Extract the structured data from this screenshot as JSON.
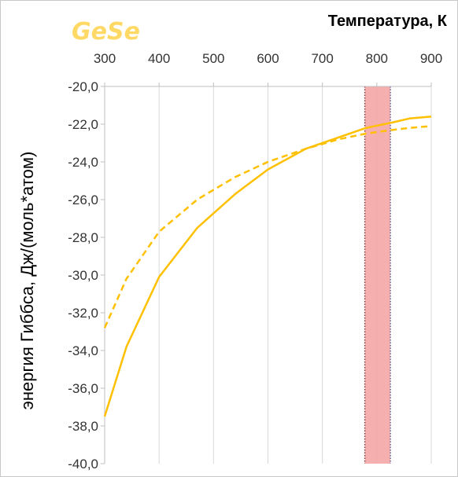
{
  "chart_data": {
    "type": "line",
    "annotation": "GeSe",
    "xlabel": "Температура, К",
    "ylabel": "энергия Гиббса, Дж/(моль*атом)",
    "xlim": [
      300,
      900
    ],
    "ylim": [
      -40,
      -20
    ],
    "x_ticks": [
      "300",
      "400",
      "500",
      "600",
      "700",
      "800",
      "900"
    ],
    "y_ticks": [
      "-20,0",
      "-22,0",
      "-24,0",
      "-26,0",
      "-28,0",
      "-30,0",
      "-32,0",
      "-34,0",
      "-36,0",
      "-38,0",
      "-40,0"
    ],
    "x_axis_position": "top",
    "grid": "vertical",
    "highlight_band": {
      "x_from": 778,
      "x_to": 825,
      "color": "#f4a6a6"
    },
    "series": [
      {
        "style": "solid",
        "color": "#ffc000",
        "x": [
          300,
          340,
          400,
          470,
          540,
          600,
          670,
          730,
          780,
          830,
          860,
          900
        ],
        "y": [
          -37.5,
          -33.8,
          -30.1,
          -27.5,
          -25.7,
          -24.4,
          -23.3,
          -22.7,
          -22.2,
          -21.9,
          -21.7,
          -21.6
        ]
      },
      {
        "style": "dashed",
        "color": "#ffc000",
        "x": [
          300,
          340,
          400,
          470,
          540,
          600,
          670,
          730,
          780,
          830,
          860,
          900
        ],
        "y": [
          -32.8,
          -30.2,
          -27.7,
          -26.0,
          -24.8,
          -24.0,
          -23.3,
          -22.8,
          -22.5,
          -22.3,
          -22.2,
          -22.1
        ]
      }
    ]
  }
}
